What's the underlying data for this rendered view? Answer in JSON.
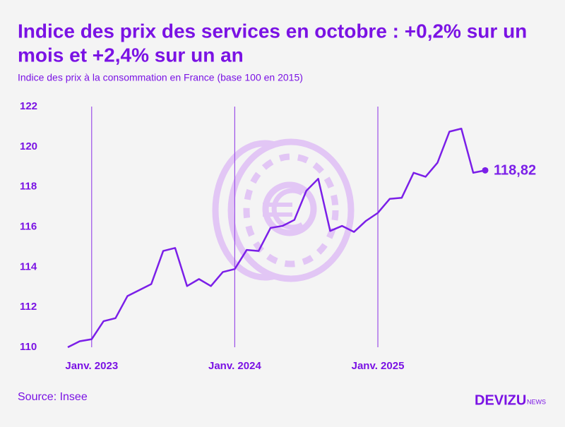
{
  "chart_data": {
    "type": "line",
    "title_lines": [
      "Indice des prix des services en octobre : +0,2% sur un",
      "mois et +2,4% sur un an"
    ],
    "subtitle": "Indice des prix à la consommation en France (base 100 en 2015)",
    "source": "Source: Insee",
    "brand": "DEVIZU",
    "brand_suffix": "NEWS",
    "categories": [
      null,
      null,
      "Janv. 2023",
      null,
      null,
      null,
      null,
      null,
      null,
      null,
      null,
      null,
      null,
      null,
      "Janv. 2024",
      null,
      null,
      null,
      null,
      null,
      null,
      null,
      null,
      null,
      null,
      null,
      "Janv. 2025",
      null,
      null,
      null,
      null,
      null,
      null,
      null,
      null,
      null
    ],
    "series": [
      {
        "name": "Indice des prix des services",
        "color": "#7b1fe8",
        "values": [
          110.0,
          110.3,
          110.4,
          111.3,
          111.45,
          112.55,
          112.85,
          113.15,
          114.8,
          114.95,
          113.05,
          113.4,
          113.05,
          113.75,
          113.9,
          114.85,
          114.8,
          115.95,
          116.05,
          116.35,
          117.8,
          118.4,
          115.8,
          116.05,
          115.75,
          116.3,
          116.7,
          117.4,
          117.45,
          118.7,
          118.5,
          119.2,
          120.75,
          120.9,
          118.7,
          118.82
        ],
        "value_labels": [
          null,
          null,
          null,
          null,
          null,
          null,
          null,
          null,
          null,
          null,
          null,
          null,
          null,
          null,
          null,
          null,
          null,
          null,
          null,
          null,
          null,
          null,
          null,
          null,
          null,
          null,
          null,
          null,
          null,
          null,
          null,
          null,
          null,
          null,
          null,
          "118,82"
        ]
      }
    ],
    "ylim": [
      110,
      122
    ],
    "yticks": [
      110,
      112,
      114,
      116,
      118,
      120,
      122
    ],
    "grid": false
  }
}
